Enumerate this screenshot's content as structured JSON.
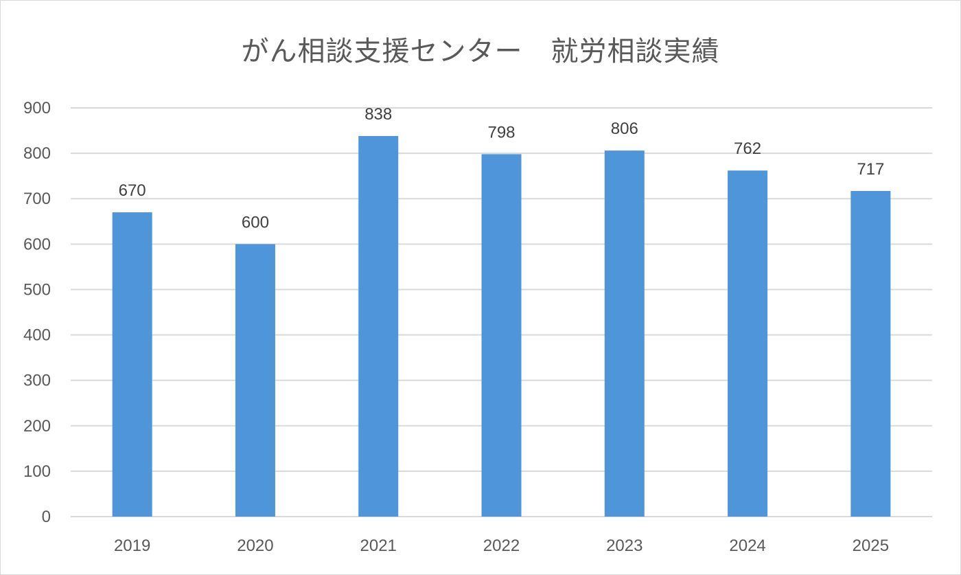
{
  "chart_data": {
    "type": "bar",
    "title": "がん相談支援センター　就労相談実績",
    "categories": [
      "2019",
      "2020",
      "2021",
      "2022",
      "2023",
      "2024",
      "2025"
    ],
    "values": [
      670,
      600,
      838,
      798,
      806,
      762,
      717
    ],
    "ylim": [
      0,
      900
    ],
    "yticks": [
      0,
      100,
      200,
      300,
      400,
      500,
      600,
      700,
      800,
      900
    ],
    "grid": true,
    "data_labels": true,
    "bar_color": "#4f95d9",
    "grid_color": "#d9d9d9",
    "text_color": "#595959",
    "label_color": "#404040"
  }
}
